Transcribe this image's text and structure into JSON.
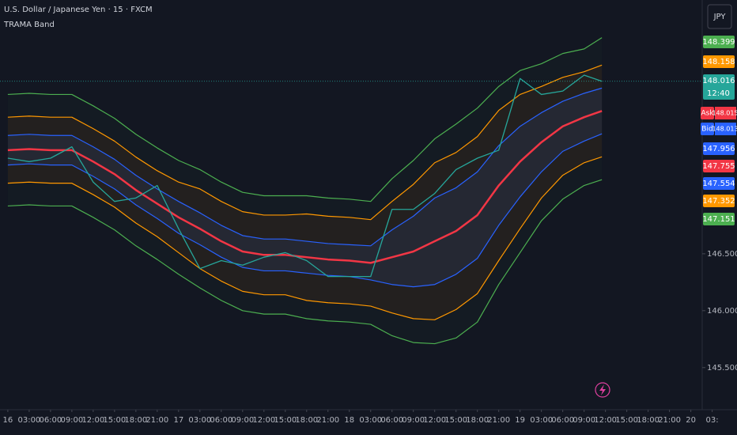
{
  "header": {
    "symbol": "U.S. Dollar / Japanese Yen · 15 · FXCM",
    "indicator": "TRAMA Band",
    "currency": "JPY"
  },
  "chart_data": {
    "type": "line",
    "x": [
      0,
      3,
      6,
      9,
      12,
      15,
      18,
      21,
      24,
      27,
      30,
      33,
      36,
      39,
      42,
      45,
      48,
      51,
      54,
      57,
      60,
      63,
      66,
      69,
      72,
      75,
      78,
      81,
      83.5
    ],
    "xlim": [
      -1.1,
      97.6
    ],
    "xticks": [
      {
        "value": 0,
        "label": "16"
      },
      {
        "value": 3,
        "label": "03:00"
      },
      {
        "value": 6,
        "label": "06:00"
      },
      {
        "value": 9,
        "label": "09:00"
      },
      {
        "value": 12,
        "label": "12:00"
      },
      {
        "value": 15,
        "label": "15:00"
      },
      {
        "value": 18,
        "label": "18:00"
      },
      {
        "value": 21,
        "label": "21:00"
      },
      {
        "value": 24,
        "label": "17"
      },
      {
        "value": 27,
        "label": "03:00"
      },
      {
        "value": 30,
        "label": "06:00"
      },
      {
        "value": 33,
        "label": "09:00"
      },
      {
        "value": 36,
        "label": "12:00"
      },
      {
        "value": 39,
        "label": "15:00"
      },
      {
        "value": 42,
        "label": "18:00"
      },
      {
        "value": 45,
        "label": "21:00"
      },
      {
        "value": 48,
        "label": "18"
      },
      {
        "value": 51,
        "label": "03:00"
      },
      {
        "value": 54,
        "label": "06:00"
      },
      {
        "value": 57,
        "label": "09:00"
      },
      {
        "value": 60,
        "label": "12:00"
      },
      {
        "value": 63,
        "label": "15:00"
      },
      {
        "value": 66,
        "label": "18:00"
      },
      {
        "value": 69,
        "label": "21:00"
      },
      {
        "value": 72,
        "label": "19"
      },
      {
        "value": 75,
        "label": "03:00"
      },
      {
        "value": 78,
        "label": "06:00"
      },
      {
        "value": 81,
        "label": "09:00"
      },
      {
        "value": 84,
        "label": "12:00"
      },
      {
        "value": 87,
        "label": "15:00"
      },
      {
        "value": 90,
        "label": "18:00"
      },
      {
        "value": 93,
        "label": "21:00"
      },
      {
        "value": 96,
        "label": "20"
      },
      {
        "value": 99,
        "label": "03:"
      }
    ],
    "ylim": [
      145.13,
      148.73
    ],
    "yticks": [
      {
        "value": 145.5,
        "label": "145.500"
      },
      {
        "value": 146,
        "label": "146.000"
      },
      {
        "value": 146.5,
        "label": "146.500"
      }
    ],
    "grid": false,
    "countdown": "12:40",
    "ask": {
      "label": "Ask",
      "value": 148.015,
      "color": "#f23645"
    },
    "bid": {
      "label": "Bid",
      "value": 148.013,
      "color": "#2962ff"
    },
    "series": [
      {
        "color": "#26a69a",
        "values": [
          147.34,
          147.31,
          147.34,
          147.44,
          147.13,
          146.96,
          146.99,
          147.1,
          146.72,
          146.37,
          146.44,
          146.4,
          146.47,
          146.51,
          146.44,
          146.3,
          146.3,
          146.3,
          146.89,
          146.89,
          147.03,
          147.24,
          147.34,
          147.41,
          148.04,
          147.9,
          147.93,
          148.07,
          148.016
        ]
      },
      {
        "color": "#f23645",
        "values": [
          147.41,
          147.42,
          147.41,
          147.41,
          147.31,
          147.2,
          147.06,
          146.94,
          146.82,
          146.72,
          146.61,
          146.52,
          146.49,
          146.49,
          146.47,
          146.45,
          146.44,
          146.42,
          146.47,
          146.52,
          146.61,
          146.7,
          146.84,
          147.1,
          147.31,
          147.48,
          147.62,
          147.7,
          147.755
        ]
      },
      {
        "color": "#2962ff",
        "values": [
          147.54,
          147.55,
          147.54,
          147.54,
          147.44,
          147.33,
          147.19,
          147.07,
          146.96,
          146.86,
          146.75,
          146.66,
          146.63,
          146.63,
          146.61,
          146.59,
          146.58,
          146.57,
          146.71,
          146.83,
          146.99,
          147.08,
          147.22,
          147.45,
          147.62,
          147.74,
          147.84,
          147.91,
          147.956
        ]
      },
      {
        "color": "#2962ff",
        "values": [
          147.28,
          147.29,
          147.28,
          147.28,
          147.18,
          147.07,
          146.93,
          146.81,
          146.68,
          146.58,
          146.47,
          146.38,
          146.35,
          146.35,
          146.33,
          146.31,
          146.3,
          146.27,
          146.23,
          146.21,
          146.23,
          146.32,
          146.46,
          146.75,
          147.0,
          147.22,
          147.4,
          147.49,
          147.554
        ]
      },
      {
        "color": "#ff9800",
        "values": [
          147.7,
          147.71,
          147.7,
          147.7,
          147.6,
          147.49,
          147.35,
          147.23,
          147.13,
          147.07,
          146.96,
          146.87,
          146.84,
          146.84,
          146.85,
          146.83,
          146.82,
          146.8,
          146.96,
          147.11,
          147.3,
          147.39,
          147.53,
          147.76,
          147.9,
          147.97,
          148.05,
          148.1,
          148.158
        ]
      },
      {
        "color": "#ff9800",
        "values": [
          147.12,
          147.13,
          147.12,
          147.12,
          147.02,
          146.91,
          146.77,
          146.65,
          146.51,
          146.37,
          146.26,
          146.17,
          146.14,
          146.14,
          146.09,
          146.07,
          146.06,
          146.04,
          145.98,
          145.93,
          145.92,
          146.01,
          146.15,
          146.44,
          146.72,
          146.99,
          147.19,
          147.3,
          147.352
        ]
      },
      {
        "color": "#4caf50",
        "values": [
          147.9,
          147.91,
          147.9,
          147.9,
          147.8,
          147.69,
          147.55,
          147.43,
          147.32,
          147.24,
          147.13,
          147.04,
          147.01,
          147.01,
          147.01,
          146.99,
          146.98,
          146.96,
          147.16,
          147.32,
          147.51,
          147.64,
          147.78,
          147.97,
          148.11,
          148.17,
          148.26,
          148.3,
          148.399
        ]
      },
      {
        "color": "#4caf50",
        "values": [
          146.92,
          146.93,
          146.92,
          146.92,
          146.82,
          146.71,
          146.57,
          146.45,
          146.32,
          146.2,
          146.09,
          146.0,
          145.97,
          145.97,
          145.93,
          145.91,
          145.9,
          145.88,
          145.78,
          145.72,
          145.71,
          145.76,
          145.9,
          146.23,
          146.51,
          146.79,
          146.98,
          147.1,
          147.151
        ]
      }
    ]
  }
}
